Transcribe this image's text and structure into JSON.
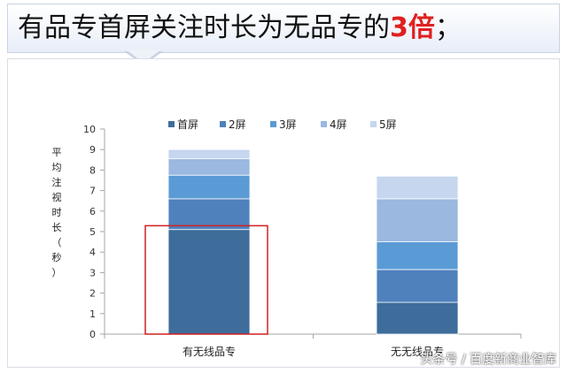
{
  "headline": {
    "prefix": "有品专首屏关注时长为无品专的",
    "highlight": "3倍",
    "suffix": "；"
  },
  "chart_data": {
    "type": "bar",
    "stacked": true,
    "categories": [
      "有无线品专",
      "无无线品专"
    ],
    "series": [
      {
        "name": "首屏",
        "color": "#3e6d9b",
        "values": [
          5.1,
          1.55
        ]
      },
      {
        "name": "2屏",
        "color": "#4f81bd",
        "values": [
          1.5,
          1.6
        ]
      },
      {
        "name": "3屏",
        "color": "#5b9bd5",
        "values": [
          1.15,
          1.35
        ]
      },
      {
        "name": "4屏",
        "color": "#9ab8e0",
        "values": [
          0.8,
          2.1
        ]
      },
      {
        "name": "5屏",
        "color": "#c5d6ee",
        "values": [
          0.45,
          1.1
        ]
      }
    ],
    "ylabel": "平均注视时长（秒）",
    "ylim": [
      0,
      10
    ],
    "yticks": [
      "0",
      "1",
      "2",
      "3",
      "4",
      "5",
      "6",
      "7",
      "8",
      "9",
      "10"
    ],
    "legend_position": "top",
    "highlight_box": {
      "category": "有无线品专",
      "from": 0,
      "to": 5.2,
      "color": "#d02020"
    }
  },
  "watermark": "头条号 / 百度新商业智库"
}
